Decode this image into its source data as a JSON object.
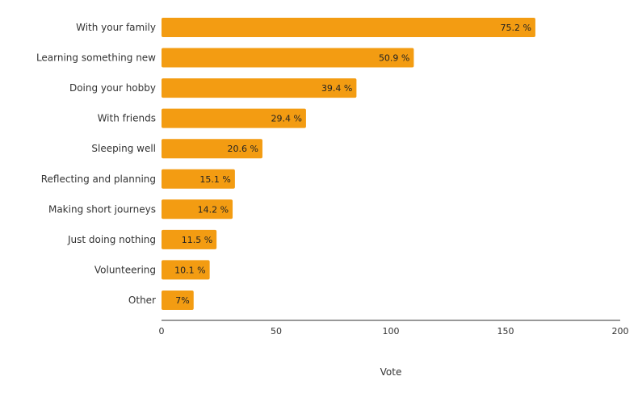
{
  "chart_data": {
    "type": "bar",
    "orientation": "horizontal",
    "categories": [
      "With your family",
      "Learning something new",
      "Doing your hobby",
      "With friends",
      "Sleeping well",
      "Reflecting and planning",
      "Making short journeys",
      "Just doing nothing",
      "Volunteering",
      "Other"
    ],
    "values": [
      163,
      110,
      85,
      63,
      44,
      32,
      31,
      24,
      21,
      14
    ],
    "data_labels": [
      "75.2 %",
      "50.9 %",
      "39.4 %",
      "29.4 %",
      "20.6 %",
      "15.1 %",
      "14.2 %",
      "11.5 %",
      "10.1 %",
      "7%"
    ],
    "xlabel": "Vote",
    "ylabel": "",
    "xlim": [
      0,
      200
    ],
    "xticks": [
      "0",
      "50",
      "100",
      "150",
      "200"
    ],
    "grid": false,
    "bar_color": "#f39c12"
  }
}
